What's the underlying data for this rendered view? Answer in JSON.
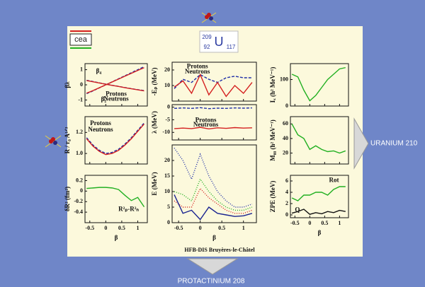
{
  "page": {
    "logo": "cea",
    "nucleus": {
      "mass": "209",
      "charge": "92",
      "symbol": "U",
      "neutrons": "117"
    },
    "footer": "HFB-DIS Bruyères-le-Châtel",
    "next": "URANIUM 210",
    "below": "PROTACTINIUM 208"
  },
  "chart_data": [
    {
      "type": "line",
      "ylabel": "βλ",
      "xlim": [
        -0.65,
        1.3
      ],
      "ylim": [
        -1.4,
        1.4
      ],
      "xticks": [
        -0.5,
        0,
        0.5,
        1
      ],
      "yticks": [
        -1,
        0,
        1
      ],
      "annotations": [
        "β₄",
        "β₂"
      ],
      "x": [
        -0.6,
        -0.4,
        -0.2,
        0,
        0.2,
        0.4,
        0.6,
        0.8,
        1.0,
        1.2
      ],
      "series": [
        {
          "name": "Protons",
          "color": "#1f2fa8",
          "style": "dashed",
          "values": [
            -0.58,
            -0.4,
            -0.2,
            0,
            0.2,
            0.4,
            0.6,
            0.8,
            1.0,
            1.2
          ]
        },
        {
          "name": "Neutrons",
          "color": "#d42020",
          "style": "solid",
          "values": [
            -0.55,
            -0.38,
            -0.19,
            0,
            0.19,
            0.38,
            0.57,
            0.76,
            0.95,
            1.13
          ]
        },
        {
          "color": "#1f2fa8",
          "style": "dashed",
          "values": [
            0.3,
            0.22,
            0.13,
            0.05,
            -0.03,
            -0.1,
            -0.18,
            -0.25,
            -0.32,
            -0.38
          ]
        },
        {
          "color": "#d42020",
          "style": "solid",
          "values": [
            0.28,
            0.2,
            0.12,
            0.04,
            -0.04,
            -0.11,
            -0.19,
            -0.26,
            -0.33,
            -0.4
          ]
        }
      ]
    },
    {
      "type": "line",
      "ylabel": "R / r₀ A¹ᐟ³",
      "xlim": [
        -0.65,
        1.3
      ],
      "ylim": [
        0.9,
        1.35
      ],
      "xticks": [
        -0.5,
        0,
        0.5,
        1
      ],
      "yticks": [
        {
          "value": 1.0,
          "label": "1.0"
        },
        {
          "value": 1.2,
          "label": "1.2"
        }
      ],
      "x": [
        -0.6,
        -0.4,
        -0.2,
        0,
        0.2,
        0.4,
        0.6,
        0.8,
        1.0,
        1.2
      ],
      "series": [
        {
          "name": "Protons",
          "color": "#1f2fa8",
          "style": "dashed",
          "values": [
            1.15,
            1.08,
            1.03,
            1.0,
            1.01,
            1.04,
            1.09,
            1.15,
            1.22,
            1.29
          ]
        },
        {
          "name": "Neutrons",
          "color": "#d42020",
          "style": "solid",
          "values": [
            1.14,
            1.07,
            1.02,
            0.99,
            1.0,
            1.03,
            1.08,
            1.14,
            1.21,
            1.28
          ]
        }
      ]
    },
    {
      "type": "line",
      "ylabel": "δR² (fm²)",
      "xlabel": "β",
      "xlim": [
        -0.65,
        1.3
      ],
      "ylim": [
        -0.6,
        0.3
      ],
      "xticks": [
        -0.5,
        0,
        0.5,
        1
      ],
      "yticks": [
        0.2,
        0,
        -0.2,
        -0.4
      ],
      "annotations": [
        "R²ₚ-R²ₙ"
      ],
      "x": [
        -0.6,
        -0.4,
        -0.2,
        0,
        0.2,
        0.4,
        0.6,
        0.8,
        1.0,
        1.2
      ],
      "series": [
        {
          "color": "#22b022",
          "style": "solid",
          "values": [
            0.05,
            0.06,
            0.07,
            0.07,
            0.06,
            0.03,
            -0.08,
            -0.18,
            -0.12,
            -0.3
          ]
        }
      ]
    },
    {
      "type": "line",
      "ylabel": "-Eₚ (MeV)",
      "xlim": [
        -0.65,
        1.3
      ],
      "ylim": [
        0,
        25
      ],
      "xticks": [
        -0.5,
        0,
        0.5,
        1
      ],
      "yticks": [
        10,
        20
      ],
      "x": [
        -0.6,
        -0.4,
        -0.2,
        0,
        0.2,
        0.4,
        0.6,
        0.8,
        1.0,
        1.2
      ],
      "series": [
        {
          "name": "Protons",
          "color": "#1f2fa8",
          "style": "dashed",
          "values": [
            8,
            14,
            12,
            17,
            14,
            12,
            15,
            16,
            15,
            15
          ]
        },
        {
          "name": "Neutrons",
          "color": "#d42020",
          "style": "solid",
          "values": [
            9,
            13,
            5,
            17,
            4,
            12,
            3,
            10,
            5,
            12
          ]
        }
      ]
    },
    {
      "type": "line",
      "ylabel": "λ (MeV)",
      "xlim": [
        -0.65,
        1.3
      ],
      "ylim": [
        -13,
        1
      ],
      "xticks": [
        -0.5,
        0,
        0.5,
        1
      ],
      "yticks": [
        0,
        -5,
        -10
      ],
      "x": [
        -0.6,
        -0.4,
        -0.2,
        0,
        0.2,
        0.4,
        0.6,
        0.8,
        1.0,
        1.2
      ],
      "series": [
        {
          "name": "Protons",
          "color": "#1f2fa8",
          "style": "dashed",
          "values": [
            -0.5,
            -0.3,
            -0.5,
            -0.2,
            -0.6,
            -0.4,
            -0.5,
            -0.3,
            -0.4,
            -0.3
          ]
        },
        {
          "name": "Neutrons",
          "color": "#d42020",
          "style": "solid",
          "values": [
            -8.5,
            -8.3,
            -8.5,
            -8.0,
            -8.6,
            -8.2,
            -8.4,
            -8.1,
            -8.3,
            -8.2
          ]
        }
      ]
    },
    {
      "type": "line",
      "ylabel": "E (MeV)",
      "xlabel": "β",
      "xlim": [
        -0.65,
        1.3
      ],
      "ylim": [
        0,
        25
      ],
      "xticks": [
        -0.5,
        0,
        0.5,
        1
      ],
      "yticks": [
        0,
        5,
        10,
        15,
        20
      ],
      "x": [
        -0.6,
        -0.4,
        -0.2,
        0,
        0.2,
        0.4,
        0.6,
        0.8,
        1.0,
        1.2
      ],
      "series": [
        {
          "color": "#1f2fa8",
          "style": "dotted",
          "values": [
            24,
            20,
            14,
            22,
            15,
            10,
            7,
            5,
            5,
            6
          ]
        },
        {
          "color": "#22b022",
          "style": "dotted",
          "values": [
            10,
            9,
            7,
            14,
            10,
            7,
            5,
            4,
            4,
            5
          ]
        },
        {
          "color": "#d42020",
          "style": "dotted",
          "values": [
            7,
            5,
            5,
            11,
            8,
            6,
            4,
            3,
            3,
            4
          ]
        },
        {
          "color": "#1a2390",
          "style": "solid",
          "values": [
            9,
            3,
            4,
            1,
            5,
            3,
            2.5,
            2,
            2.2,
            3
          ]
        }
      ]
    },
    {
      "type": "line",
      "ylabel": "Iₓ (ħ² MeV⁻¹)",
      "xlim": [
        -0.65,
        1.3
      ],
      "ylim": [
        0,
        160
      ],
      "xticks": [
        -0.5,
        0,
        0.5,
        1
      ],
      "yticks": [
        0,
        100
      ],
      "x": [
        -0.6,
        -0.4,
        -0.2,
        0,
        0.2,
        0.4,
        0.6,
        0.8,
        1.0,
        1.2
      ],
      "series": [
        {
          "color": "#22b022",
          "style": "solid",
          "values": [
            120,
            110,
            60,
            20,
            40,
            70,
            100,
            120,
            140,
            145
          ]
        }
      ]
    },
    {
      "type": "line",
      "ylabel": "M₀₀ (ħ² MeV⁻¹)",
      "xlim": [
        -0.65,
        1.3
      ],
      "ylim": [
        5,
        70
      ],
      "xticks": [
        -0.5,
        0,
        0.5,
        1
      ],
      "yticks": [
        20,
        40,
        60
      ],
      "x": [
        -0.6,
        -0.4,
        -0.2,
        0,
        0.2,
        0.4,
        0.6,
        0.8,
        1.0,
        1.2
      ],
      "series": [
        {
          "color": "#22b022",
          "style": "solid",
          "values": [
            60,
            45,
            40,
            25,
            30,
            25,
            22,
            23,
            20,
            23
          ]
        }
      ]
    },
    {
      "type": "line",
      "ylabel": "ZPE (MeV)",
      "xlabel": "β",
      "xlim": [
        -0.65,
        1.3
      ],
      "ylim": [
        -0.5,
        7
      ],
      "xticks": [
        -0.5,
        0,
        0.5,
        1
      ],
      "yticks": [
        0,
        2,
        4,
        6
      ],
      "x": [
        -0.6,
        -0.4,
        -0.2,
        0,
        0.2,
        0.4,
        0.6,
        0.8,
        1.0,
        1.2
      ],
      "series": [
        {
          "name": "Rot",
          "color": "#22b022",
          "style": "solid",
          "values": [
            3,
            2.5,
            3.5,
            3.5,
            4,
            4,
            3.5,
            4.5,
            5,
            5
          ]
        },
        {
          "name": "Q",
          "color": "#111111",
          "style": "solid",
          "values": [
            0.3,
            0.6,
            1,
            0.1,
            0.4,
            0.2,
            0.6,
            0.4,
            0.8,
            0.6
          ]
        }
      ]
    }
  ]
}
